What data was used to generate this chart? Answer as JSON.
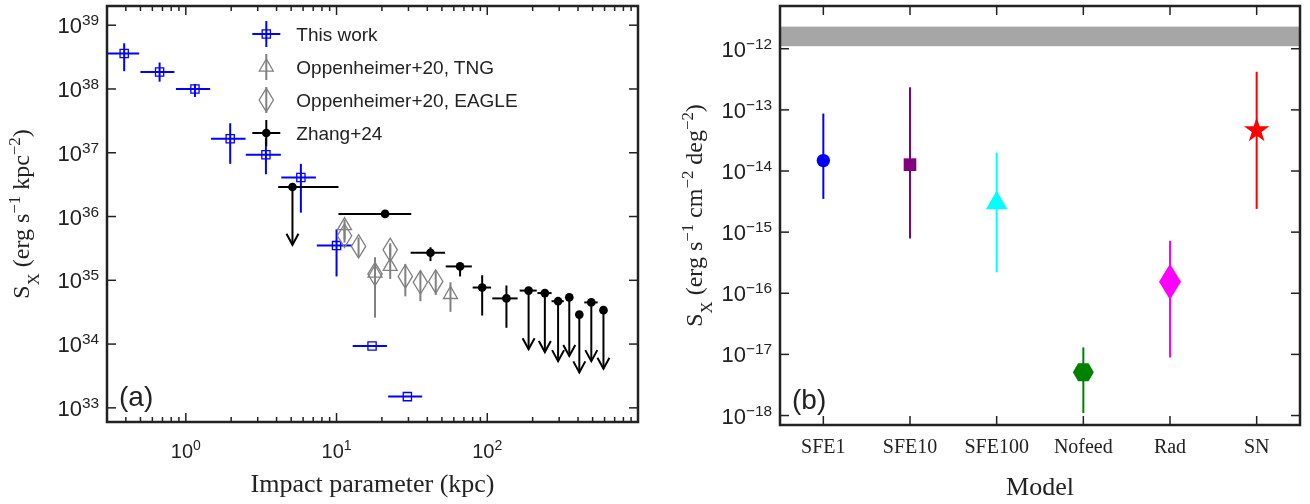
{
  "chart_data": [
    {
      "type": "scatter",
      "log": "xy",
      "xlabel": "Impact parameter (kpc)",
      "ylabel": "S$_{X}$ (erg s$^{−1}$ kpc$^{−2}$)",
      "xlim": [
        0.3,
        1000
      ],
      "ylim": [
        6e+32,
        2e+39
      ],
      "xticks": [
        {
          "value": 0.3,
          "label": null
        },
        {
          "value": 0.4,
          "label": null
        },
        {
          "value": 0.5,
          "label": null
        },
        {
          "value": 0.6,
          "label": null
        },
        {
          "value": 0.7,
          "label": null
        },
        {
          "value": 0.8,
          "label": null
        },
        {
          "value": 0.9,
          "label": null
        },
        {
          "value": 1,
          "label": "10$^{0}$"
        },
        {
          "value": 2,
          "label": null
        },
        {
          "value": 3,
          "label": null
        },
        {
          "value": 4,
          "label": null
        },
        {
          "value": 5,
          "label": null
        },
        {
          "value": 6,
          "label": null
        },
        {
          "value": 7,
          "label": null
        },
        {
          "value": 8,
          "label": null
        },
        {
          "value": 9,
          "label": null
        },
        {
          "value": 10,
          "label": "10$^{1}$"
        },
        {
          "value": 20,
          "label": null
        },
        {
          "value": 30,
          "label": null
        },
        {
          "value": 40,
          "label": null
        },
        {
          "value": 50,
          "label": null
        },
        {
          "value": 60,
          "label": null
        },
        {
          "value": 70,
          "label": null
        },
        {
          "value": 80,
          "label": null
        },
        {
          "value": 90,
          "label": null
        },
        {
          "value": 100,
          "label": "10$^{2}$"
        },
        {
          "value": 200,
          "label": null
        },
        {
          "value": 300,
          "label": null
        },
        {
          "value": 400,
          "label": null
        },
        {
          "value": 500,
          "label": null
        },
        {
          "value": 600,
          "label": null
        },
        {
          "value": 700,
          "label": null
        },
        {
          "value": 800,
          "label": null
        },
        {
          "value": 900,
          "label": null
        }
      ],
      "yticks": [
        {
          "value": 1e+33,
          "label": "10$^{33}$"
        },
        {
          "value": 1e+34,
          "label": "10$^{34}$"
        },
        {
          "value": 1e+35,
          "label": "10$^{35}$"
        },
        {
          "value": 1e+36,
          "label": "10$^{36}$"
        },
        {
          "value": 1e+37,
          "label": "10$^{37}$"
        },
        {
          "value": 1e+38,
          "label": "10$^{38}$"
        },
        {
          "value": 1e+39,
          "label": "10$^{39}$"
        }
      ],
      "legend": "top",
      "annotations": [
        "(a)"
      ],
      "series": [
        {
          "name": "This work",
          "color": "#0000ff",
          "marker": "square",
          "x": [
            0.39,
            0.67,
            1.15,
            1.97,
            3.4,
            5.8,
            10,
            17.2,
            29.5
          ],
          "values": [
            3.6e+38,
            1.85e+38,
            1e+38,
            1.66e+37,
            9.3e+36,
            4.1e+36,
            3.5e+35,
            9.3e+33,
            1.5e+33
          ],
          "xerrors": [
            [
              0.3,
              0.49
            ],
            [
              0.5,
              0.84
            ],
            [
              0.86,
              1.45
            ],
            [
              1.47,
              2.49
            ],
            [
              2.5,
              4.27
            ],
            [
              4.3,
              7.3
            ],
            [
              7.4,
              12.6
            ],
            [
              12.8,
              21.6
            ],
            [
              22,
              37
            ]
          ],
          "errors": [
            [
              1.9e+38,
              5.2e+38
            ],
            [
              1.3e+38,
              2.6e+38
            ],
            [
              7.5e+37,
              1.2e+38
            ],
            [
              6.7e+36,
              2.9e+37
            ],
            [
              4.6e+36,
              1.7e+37
            ],
            [
              1.15e+36,
              6.7e+36
            ],
            [
              1.15e+35,
              6.3e+35
            ],
            null,
            null
          ]
        },
        {
          "name": "Oppenheimer+20, TNG",
          "color": "#808080",
          "marker": "triangle",
          "x": [
            11.3,
            18,
            22.7,
            57
          ],
          "values": [
            7.2e+35,
            1.3e+35,
            1.65e+35,
            6e+34
          ],
          "errors": [
            [
              4.4e+35,
              8.9e+35
            ],
            [
              2.6e+34,
              2.3e+35
            ],
            [
              1.05e+35,
              3.6e+35
            ],
            [
              3.2e+34,
              9.3e+34
            ]
          ]
        },
        {
          "name": "Oppenheimer+20, EAGLE",
          "color": "#808080",
          "marker": "diamond",
          "x": [
            11.3,
            14,
            18,
            22.7,
            28.6,
            36,
            45.5
          ],
          "values": [
            5e+35,
            3.4e+35,
            1.25e+35,
            3e+35,
            1.15e+35,
            9.3e+34,
            9.6e+34
          ],
          "errors": [
            [
              3.9e+35,
              7.5e+35
            ],
            [
              2.3e+35,
              4.7e+35
            ],
            [
              4e+34,
              2.2e+35
            ],
            [
              2.3e+35,
              3.8e+35
            ],
            [
              5.6e+34,
              1.8e+35
            ],
            [
              4.7e+34,
              1.4e+35
            ],
            [
              5.9e+34,
              1.4e+35
            ]
          ]
        },
        {
          "name": "Zhang+24",
          "color": "#000000",
          "marker": "circle",
          "x": [
            21,
            42,
            66,
            92.5,
            134
          ],
          "values": [
            1.1e+36,
            2.7e+35,
            1.65e+35,
            7.7e+34,
            5.2e+34
          ],
          "xerrors": [
            [
              10.3,
              31.3
            ],
            [
              31,
              52.5
            ],
            [
              53,
              79
            ],
            [
              80,
              106
            ],
            [
              108,
              159
            ]
          ],
          "errors": [
            null,
            [
              2e+35,
              3.3e+35
            ],
            [
              1.15e+35,
              1.9e+35
            ],
            [
              2.8e+34,
              1.2e+35
            ],
            [
              1.8e+34,
              8.3e+34
            ]
          ]
        },
        {
          "color": "#000000",
          "marker": "circle",
          "x": [
            5.1,
            188,
            241,
            295,
            350,
            408,
            490,
            590
          ],
          "values": [
            2.9e+36,
            6.9e+34,
            6.3e+34,
            4.7e+34,
            5.4e+34,
            2.9e+34,
            4.5e+34,
            3.4e+34
          ],
          "xerrors": [
            [
              4.1,
              10.3
            ],
            [
              164,
              213
            ],
            [
              215,
              267
            ],
            [
              267,
              322
            ],
            null,
            null,
            [
              440,
              540
            ],
            null
          ],
          "errors": [
            [
              3.6e+35,
              2.9e+36
            ],
            [
              8.3e+33,
              6.9e+34
            ],
            [
              7.5e+33,
              6.3e+34
            ],
            [
              5.4e+33,
              4.7e+34
            ],
            [
              6.5e+33,
              5.4e+34
            ],
            [
              3.6e+33,
              2.9e+34
            ],
            [
              5.4e+33,
              4.5e+34
            ],
            [
              4.1e+33,
              3.4e+34
            ]
          ]
        }
      ]
    },
    {
      "type": "scatter",
      "log": "y",
      "xlabel": "Model",
      "ylabel": "S$_{X}$ (erg s$^{−1}$ cm$^{−2}$ deg$^{−2}$)",
      "categories": [
        "SFE1",
        "SFE10",
        "SFE100",
        "Nofeed",
        "Rad",
        "SN"
      ],
      "ylim": [
        7e-19,
        5e-12
      ],
      "yticks": [
        {
          "value": 1e-18,
          "label": "10$^{−18}$"
        },
        {
          "value": 1e-17,
          "label": "10$^{−17}$"
        },
        {
          "value": 1e-16,
          "label": "10$^{−16}$"
        },
        {
          "value": 1e-15,
          "label": "10$^{−15}$"
        },
        {
          "value": 1e-14,
          "label": "10$^{−14}$"
        },
        {
          "value": 1e-13,
          "label": "10$^{−13}$"
        },
        {
          "value": 1e-12,
          "label": "10$^{−12}$"
        }
      ],
      "bands": [
        {
          "axis": "y",
          "from": 1.1e-12,
          "to": 2.3e-12,
          "color": "#a6a6a6"
        }
      ],
      "annotations": [
        "(b)"
      ],
      "series": [
        {
          "color": "#0000ff",
          "marker": "circle",
          "values": [
            1.48e-14,
            null,
            null,
            null,
            null,
            null
          ],
          "errors": [
            [
              3.5e-15,
              8.7e-14
            ],
            null,
            null,
            null,
            null,
            null
          ]
        },
        {
          "color": "#800080",
          "marker": "square",
          "values": [
            null,
            1.27e-14,
            null,
            null,
            null,
            null
          ],
          "errors": [
            null,
            [
              7.9e-16,
              2.35e-13
            ],
            null,
            null,
            null,
            null
          ]
        },
        {
          "color": "#00ffff",
          "marker": "triangle",
          "values": [
            null,
            null,
            3e-15,
            null,
            null,
            null
          ],
          "errors": [
            null,
            null,
            [
              2.2e-16,
              2e-14
            ],
            null,
            null,
            null
          ]
        },
        {
          "color": "#008000",
          "values": [
            null,
            null,
            null,
            5.1e-18,
            null,
            null
          ],
          "errors": [
            null,
            null,
            null,
            [
              1.1e-18,
              1.3e-17
            ],
            null,
            null
          ]
        },
        {
          "color": "#ff00ff",
          "marker": "diamond",
          "values": [
            null,
            null,
            null,
            null,
            1.55e-16,
            null
          ],
          "errors": [
            null,
            null,
            null,
            null,
            [
              8.9e-18,
              7.2e-16
            ],
            null
          ]
        },
        {
          "color": "#ff0000",
          "marker": "star",
          "values": [
            null,
            null,
            null,
            null,
            null,
            4.6e-14
          ],
          "errors": [
            null,
            null,
            null,
            null,
            null,
            [
              2.4e-15,
              4.2e-13
            ]
          ]
        }
      ]
    }
  ]
}
